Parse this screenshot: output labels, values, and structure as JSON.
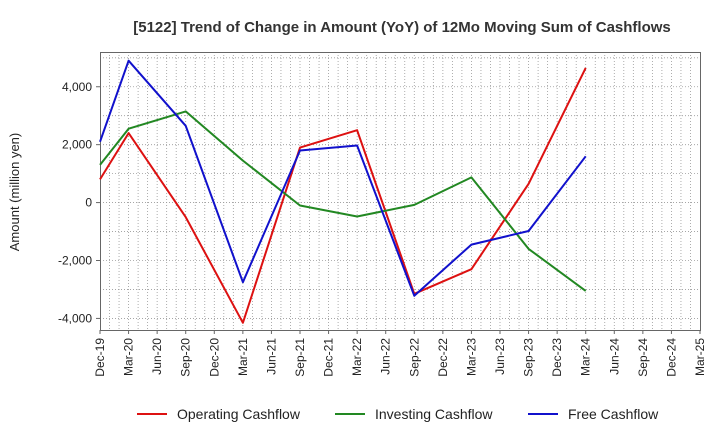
{
  "chart_data": {
    "type": "line",
    "title": "[5122]  Trend of Change in Amount (YoY) of 12Mo Moving Sum of Cashflows",
    "xlabel": "",
    "ylabel": "Amount (million yen)",
    "ylim": [
      -4400,
      5200
    ],
    "yticks": [
      -4000,
      -2000,
      0,
      2000,
      4000
    ],
    "ytick_labels": [
      "-4,000",
      "-2,000",
      "0",
      "2,000",
      "4,000"
    ],
    "grid": true,
    "categories": [
      "Dec-19",
      "Mar-20",
      "Jun-20",
      "Sep-20",
      "Dec-20",
      "Mar-21",
      "Jun-21",
      "Sep-21",
      "Dec-21",
      "Mar-22",
      "Jun-22",
      "Sep-22",
      "Dec-22",
      "Mar-23",
      "Jun-23",
      "Sep-23",
      "Dec-23",
      "Mar-24",
      "Jun-24",
      "Sep-24",
      "Dec-24",
      "Mar-25"
    ],
    "series": [
      {
        "name": "Operating Cashflow",
        "color": "#dd1111",
        "values": [
          800,
          2400,
          null,
          -500,
          null,
          -4150,
          null,
          1900,
          null,
          2500,
          null,
          -3150,
          null,
          -2300,
          null,
          650,
          null,
          4650,
          null,
          null,
          null,
          null
        ]
      },
      {
        "name": "Investing Cashflow",
        "color": "#228822",
        "values": [
          1300,
          2550,
          null,
          3150,
          null,
          1450,
          null,
          -100,
          null,
          -480,
          null,
          -80,
          null,
          870,
          null,
          -1600,
          null,
          -3050,
          null,
          null,
          null,
          null
        ]
      },
      {
        "name": "Free Cashflow",
        "color": "#1111cc",
        "values": [
          2100,
          4900,
          null,
          2650,
          null,
          -2750,
          null,
          1800,
          null,
          1970,
          null,
          -3220,
          null,
          -1450,
          null,
          -980,
          null,
          1600,
          null,
          null,
          null,
          null
        ]
      }
    ],
    "legend_position": "bottom-center"
  }
}
